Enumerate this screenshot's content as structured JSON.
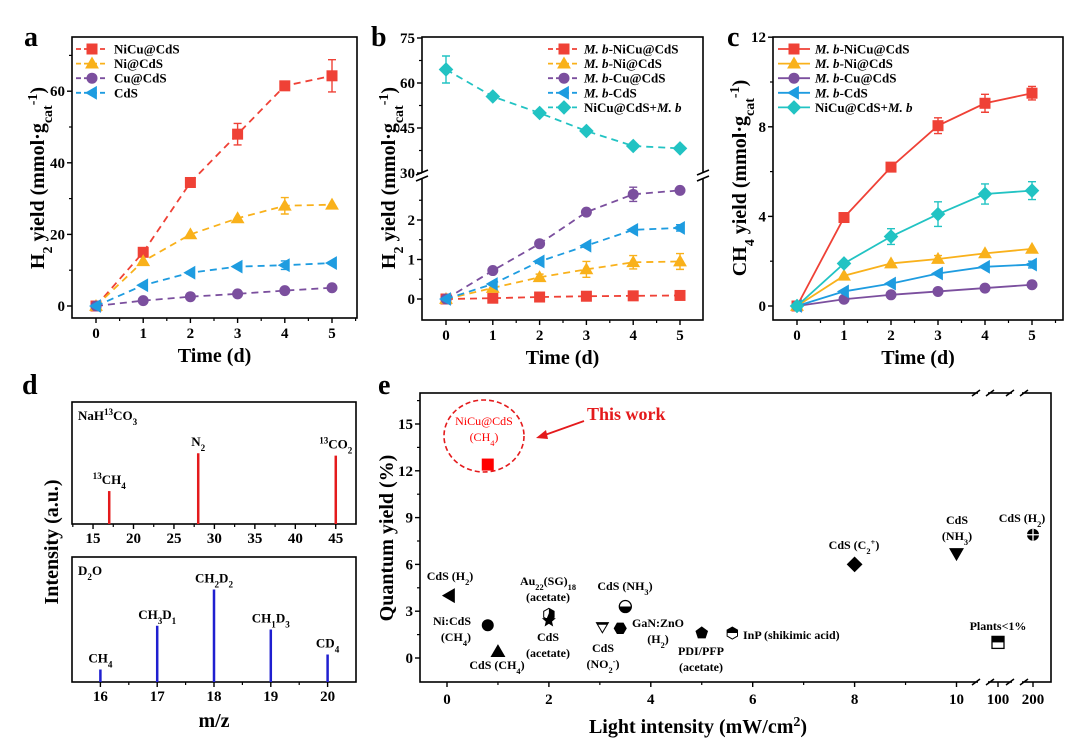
{
  "panel_letters": [
    "a",
    "b",
    "c",
    "d",
    "e"
  ],
  "chart_data": [
    {
      "id": "a",
      "type": "line",
      "line_style": "dashed",
      "xlabel": "Time (d)",
      "ylabel": "H_{2} yield (mmol·g_{cat}^{-1})",
      "xlim": [
        -0.5,
        5.3
      ],
      "ylim": [
        -3.4,
        75
      ],
      "xticks": [
        0,
        1,
        2,
        3,
        4,
        5
      ],
      "yticks": [
        0,
        20,
        40,
        60
      ],
      "x": [
        0,
        1,
        2,
        3,
        4,
        5
      ],
      "legend_position": "top-left",
      "series": [
        {
          "name": "NiCu@CdS",
          "marker": "square",
          "color": "#EF4136",
          "values": [
            0,
            15,
            34.5,
            48,
            61.5,
            64.3
          ],
          "err": [
            0,
            0,
            0,
            3,
            0,
            4.5
          ]
        },
        {
          "name": "Ni@CdS",
          "marker": "triangle-up",
          "color": "#F9B11B",
          "values": [
            0,
            12.5,
            20,
            24.5,
            28,
            28.3
          ],
          "err": [
            0,
            0,
            0,
            0,
            2.3,
            0
          ]
        },
        {
          "name": "Cu@CdS",
          "marker": "circle",
          "color": "#7B4F9E",
          "values": [
            0,
            1.5,
            2.6,
            3.4,
            4.3,
            5.1
          ],
          "err": [
            0,
            0,
            0,
            0,
            0,
            0
          ]
        },
        {
          "name": "CdS",
          "marker": "triangle-left",
          "color": "#1E9CE0",
          "values": [
            0,
            5.8,
            9.3,
            11,
            11.4,
            12
          ],
          "err": [
            0,
            0,
            0,
            0,
            1.2,
            0
          ]
        }
      ]
    },
    {
      "id": "b",
      "type": "line",
      "line_style": "dashed",
      "broken_y_axis": [
        3,
        30
      ],
      "xlabel": "Time (d)",
      "ylabel": "H_{2} yield (mmol·g_{cat}^{-1})",
      "xlim": [
        -0.5,
        5.3
      ],
      "ylim": [
        -0.53,
        75
      ],
      "xticks": [
        0,
        1,
        2,
        3,
        4,
        5
      ],
      "yticks": [
        0,
        1,
        2,
        30,
        45,
        60,
        75
      ],
      "x": [
        0,
        1,
        2,
        3,
        4,
        5
      ],
      "legend_position": "top-right",
      "series": [
        {
          "name": "*M. b*-NiCu@CdS",
          "marker": "square",
          "color": "#EF4136",
          "values": [
            0,
            0.02,
            0.05,
            0.07,
            0.08,
            0.09
          ],
          "err": [
            0,
            0,
            0,
            0,
            0,
            0
          ]
        },
        {
          "name": "*M. b*-Ni@CdS",
          "marker": "triangle-up",
          "color": "#F9B11B",
          "values": [
            0,
            0.28,
            0.55,
            0.75,
            0.93,
            0.95
          ],
          "err": [
            0,
            0,
            0.08,
            0.2,
            0.17,
            0.2
          ]
        },
        {
          "name": "*M. b*-Cu@CdS",
          "marker": "circle",
          "color": "#7B4F9E",
          "values": [
            0,
            0.72,
            1.4,
            2.2,
            2.65,
            2.75
          ],
          "err": [
            0,
            0,
            0,
            0,
            0.18,
            0
          ]
        },
        {
          "name": "*M. b*-CdS",
          "marker": "triangle-left",
          "color": "#1E9CE0",
          "values": [
            0,
            0.38,
            0.95,
            1.35,
            1.75,
            1.8
          ],
          "err": [
            0,
            0,
            0,
            0,
            0,
            0.08
          ]
        },
        {
          "name": "NiCu@CdS+*M. b*",
          "marker": "diamond",
          "color": "#22C3C3",
          "values": [
            64.5,
            55.5,
            50,
            44,
            39,
            38.2
          ],
          "err": [
            4.5,
            0,
            0,
            0,
            0,
            0
          ]
        }
      ]
    },
    {
      "id": "c",
      "type": "line",
      "line_style": "solid",
      "xlabel": "Time (d)",
      "ylabel": "CH_{4} yield (mmol·g_{cat}^{-1})",
      "xlim": [
        -0.5,
        5.6
      ],
      "ylim": [
        -0.6,
        12
      ],
      "xticks": [
        0,
        1,
        2,
        3,
        4,
        5
      ],
      "yticks": [
        0,
        4,
        8,
        12
      ],
      "x": [
        0,
        1,
        2,
        3,
        4,
        5
      ],
      "legend_position": "top-left",
      "series": [
        {
          "name": "*M. b*-NiCu@CdS",
          "marker": "square",
          "color": "#EF4136",
          "values": [
            0,
            3.95,
            6.2,
            8.05,
            9.05,
            9.5
          ],
          "err": [
            0,
            0,
            0,
            0.35,
            0.4,
            0.3
          ]
        },
        {
          "name": "*M. b*-Ni@CdS",
          "marker": "triangle-up",
          "color": "#F9B11B",
          "values": [
            0,
            1.35,
            1.9,
            2.1,
            2.35,
            2.55
          ],
          "err": [
            0,
            0,
            0,
            0.15,
            0,
            0
          ]
        },
        {
          "name": "*M. b*-Cu@CdS",
          "marker": "circle",
          "color": "#7B4F9E",
          "values": [
            0,
            0.3,
            0.5,
            0.65,
            0.8,
            0.95
          ],
          "err": [
            0,
            0,
            0,
            0,
            0,
            0
          ]
        },
        {
          "name": "*M. b*-CdS",
          "marker": "triangle-left",
          "color": "#1E9CE0",
          "values": [
            0,
            0.65,
            1.0,
            1.45,
            1.75,
            1.85
          ],
          "err": [
            0,
            0,
            0,
            0,
            0,
            0.15
          ]
        },
        {
          "name": "NiCu@CdS+*M. b*",
          "marker": "diamond",
          "color": "#22C3C3",
          "values": [
            0,
            1.9,
            3.1,
            4.1,
            5.0,
            5.15
          ],
          "err": [
            0,
            0,
            0.35,
            0.55,
            0.45,
            0.4
          ]
        }
      ]
    },
    {
      "id": "d",
      "type": "bar",
      "ylabel": "Intensity (a.u.)",
      "xlabel": "m/z",
      "subplots": [
        {
          "title": "NaH^{13}CO_{3}",
          "color": "#E41A1C",
          "xlim": [
            12.4,
            47.5
          ],
          "ylim": [
            0,
            1
          ],
          "xticks": [
            15,
            20,
            25,
            30,
            35,
            40,
            45
          ],
          "peaks": [
            {
              "x": 17,
              "value": 0.27,
              "label": "^{13}CH_{4}"
            },
            {
              "x": 28,
              "value": 0.58,
              "label": "N_{2}"
            },
            {
              "x": 45,
              "value": 0.56,
              "label": "^{13}CO_{2}"
            }
          ]
        },
        {
          "title": "D_{2}O",
          "color": "#1F1FD0",
          "xlim": [
            15.5,
            20.5
          ],
          "ylim": [
            0,
            1
          ],
          "xticks": [
            16,
            17,
            18,
            19,
            20
          ],
          "peaks": [
            {
              "x": 16,
              "value": 0.1,
              "label": "CH_{4}"
            },
            {
              "x": 17,
              "value": 0.45,
              "label": "CH_{3}D_{1}"
            },
            {
              "x": 18,
              "value": 0.74,
              "label": "CH_{2}D_{2}"
            },
            {
              "x": 19,
              "value": 0.42,
              "label": "CH_{1}D_{3}"
            },
            {
              "x": 20,
              "value": 0.22,
              "label": "CD_{4}"
            }
          ]
        }
      ]
    },
    {
      "id": "e",
      "type": "scatter",
      "xlabel": "Light intensity (mW/cm^{2})",
      "ylabel": "Quantum yield (%)",
      "xlim": [
        -0.5,
        220
      ],
      "ylim": [
        -1.5,
        17
      ],
      "x_axis_broken_after": 10,
      "xticks": [
        0,
        2,
        4,
        6,
        8,
        10,
        100,
        200
      ],
      "yticks": [
        0,
        3,
        6,
        9,
        12,
        15
      ],
      "highlight_label": "This work",
      "points": [
        {
          "x": 0.8,
          "y": 12.4,
          "marker": "square",
          "color": "#FF0000",
          "label": [
            "NiCu@CdS",
            "(CH_{4})"
          ]
        },
        {
          "x": 0.05,
          "y": 4.0,
          "marker": "triangle-left",
          "color": "#000000",
          "label": [
            "CdS (H_{2})"
          ]
        },
        {
          "x": 0.8,
          "y": 2.1,
          "marker": "circle",
          "color": "#000000",
          "label": [
            "Ni:CdS",
            "(CH_{4})"
          ]
        },
        {
          "x": 1.0,
          "y": 0.4,
          "marker": "triangle-up",
          "color": "#000000",
          "label": [
            "CdS (CH_{4})"
          ]
        },
        {
          "x": 2.0,
          "y": 2.8,
          "marker": "half-hexagon",
          "color": "#000000",
          "label": [
            "Au_{22}(SG)_{18}",
            "(acetate)"
          ]
        },
        {
          "x": 2.0,
          "y": 2.4,
          "marker": "star",
          "color": "#000000",
          "label": [
            "CdS",
            "(acetate)"
          ]
        },
        {
          "x": 3.05,
          "y": 2.0,
          "marker": "triangle-down-open",
          "color": "#000000",
          "label": [
            "CdS",
            "(NO_{2}^{-})"
          ]
        },
        {
          "x": 3.4,
          "y": 1.9,
          "marker": "hexagon",
          "color": "#000000",
          "label": [
            "GaN:ZnO",
            "(H_{2})"
          ]
        },
        {
          "x": 3.5,
          "y": 3.3,
          "marker": "half-circle",
          "color": "#000000",
          "label": [
            "CdS (NH_{3})"
          ]
        },
        {
          "x": 5.0,
          "y": 1.6,
          "marker": "pentagon",
          "color": "#000000",
          "label": [
            "PDI/PFP",
            "(acetate)"
          ]
        },
        {
          "x": 5.6,
          "y": 1.6,
          "marker": "half-hexagon-top",
          "color": "#000000",
          "label": [
            "InP (shikimic acid)"
          ]
        },
        {
          "x": 8.0,
          "y": 6.0,
          "marker": "diamond",
          "color": "#000000",
          "label": [
            "CdS (C_{2}^{+})"
          ]
        },
        {
          "x": 10,
          "y": 6.7,
          "marker": "triangle-down",
          "color": "#000000",
          "label": [
            "CdS",
            "(NH_{3})"
          ]
        },
        {
          "x": 100,
          "y": 1.0,
          "marker": "half-square",
          "color": "#000000",
          "label": [
            "Plants<1%"
          ]
        },
        {
          "x": 200,
          "y": 7.9,
          "marker": "crossed-circle",
          "color": "#000000",
          "label": [
            "CdS (H_{2})"
          ]
        }
      ]
    }
  ]
}
